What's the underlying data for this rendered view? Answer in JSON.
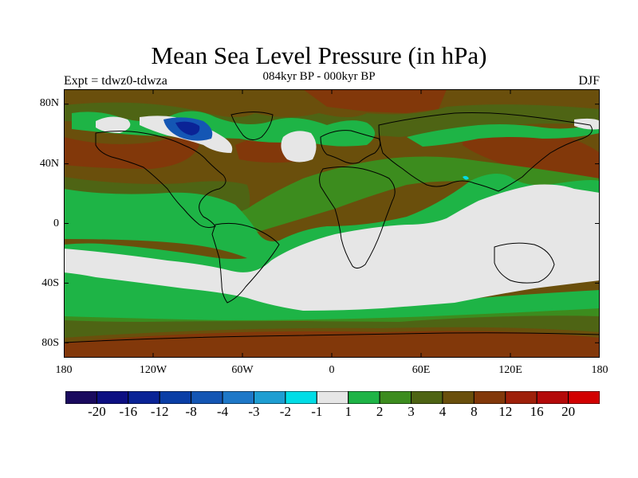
{
  "title": "Mean Sea Level Pressure (in hPa)",
  "subtitle": "084kyr BP - 000kyr BP",
  "experiment": "Expt = tdwz0-tdwza",
  "season": "DJF",
  "lat_labels": [
    "80N",
    "40N",
    "0",
    "40S",
    "80S"
  ],
  "lon_labels": [
    "180",
    "120W",
    "60W",
    "0",
    "60E",
    "120E",
    "180"
  ],
  "colorbar": {
    "labels": [
      "-20",
      "-16",
      "-12",
      "-8",
      "-4",
      "-3",
      "-2",
      "-1",
      "1",
      "2",
      "3",
      "4",
      "8",
      "12",
      "16",
      "20"
    ],
    "colors": [
      "#1a0a5e",
      "#0d0f82",
      "#0a2396",
      "#0a3ea6",
      "#1456b4",
      "#1e78c8",
      "#1e9ed2",
      "#00dde6",
      "#e6e6e6",
      "#1eb446",
      "#3c8c1e",
      "#4e6414",
      "#6a4f0c",
      "#82380a",
      "#9e200a",
      "#b40a0a",
      "#d20000"
    ]
  },
  "palette": {
    "ocean_base": "#6a4f0c",
    "brown_dark": "#82380a",
    "olive": "#4e6414",
    "green_mid": "#3c8c1e",
    "green_light": "#1eb446",
    "grey": "#e6e6e6",
    "blue": "#1456b4",
    "blue_dark": "#0a2396",
    "cyan": "#00dde6",
    "coast": "#000000"
  }
}
